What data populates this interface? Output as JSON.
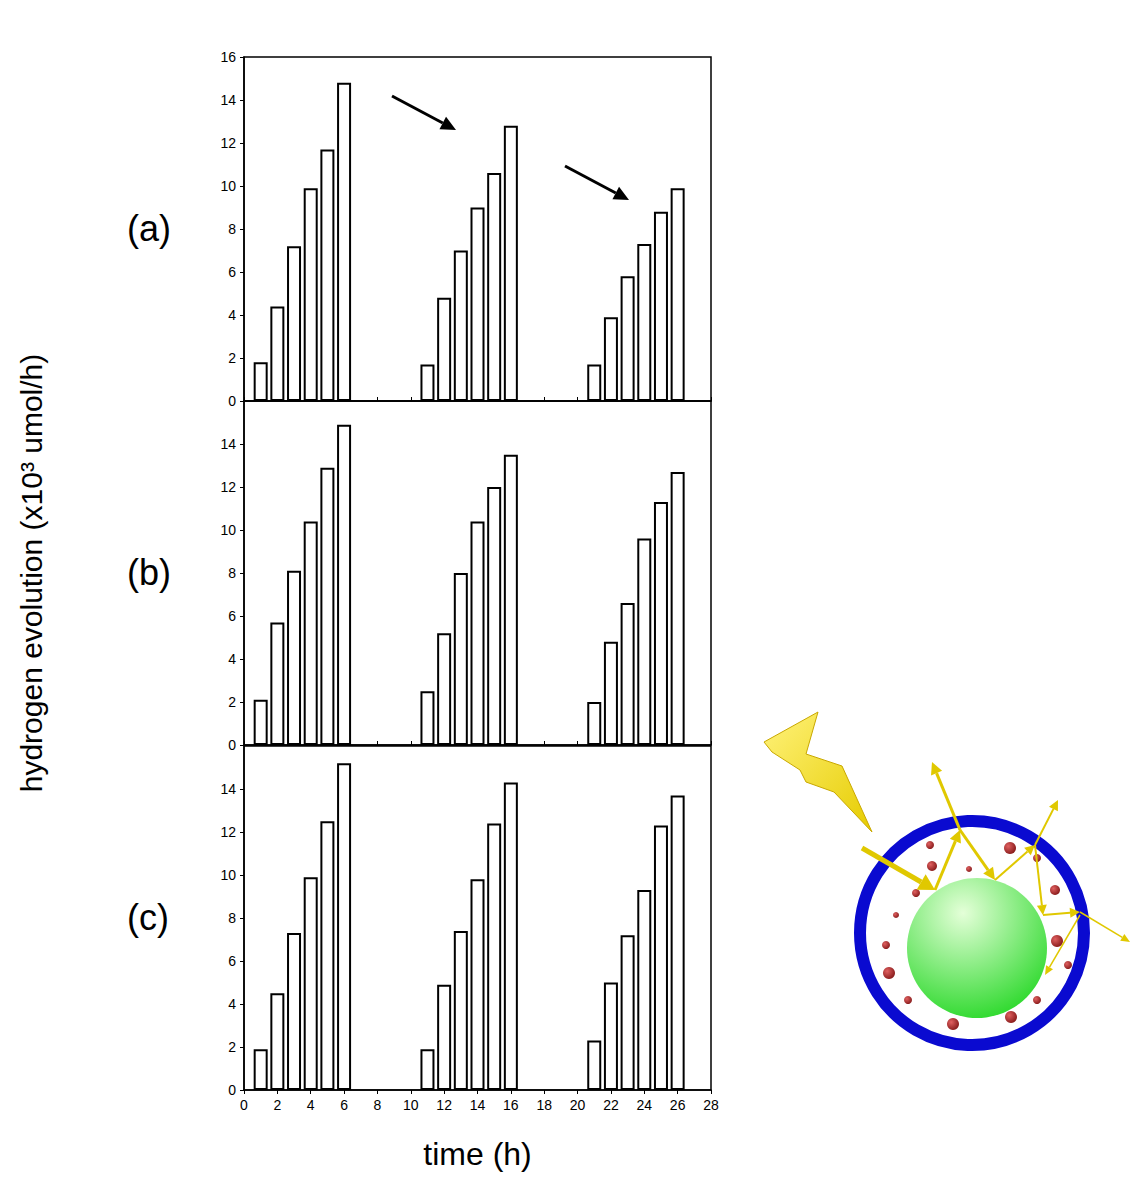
{
  "chart_data": [
    {
      "type": "bar",
      "title": "(a)",
      "x": [
        1,
        2,
        3,
        4,
        5,
        6,
        11,
        12,
        13,
        14,
        15,
        16,
        21,
        22,
        23,
        24,
        25,
        26
      ],
      "values": [
        1.8,
        4.4,
        7.2,
        9.9,
        11.7,
        14.8,
        1.7,
        4.8,
        7.0,
        9.0,
        10.6,
        12.8,
        1.7,
        3.9,
        5.8,
        7.3,
        8.8,
        9.9
      ],
      "color": "#ffffff",
      "xlim": [
        0,
        28
      ],
      "xticks": [
        0,
        2,
        4,
        6,
        8,
        10,
        12,
        14,
        16,
        18,
        20,
        22,
        24,
        26,
        28
      ],
      "ylim": [
        0,
        16
      ],
      "yticks": [
        0,
        2,
        4,
        6,
        8,
        10,
        12,
        14,
        16
      ],
      "tick_labels": "y",
      "grid": false
    },
    {
      "type": "bar",
      "title": "(b)",
      "ylabel": "hydrogen evolution (x10³ umol/h)",
      "x": [
        1,
        2,
        3,
        4,
        5,
        6,
        11,
        12,
        13,
        14,
        15,
        16,
        21,
        22,
        23,
        24,
        25,
        26
      ],
      "values": [
        2.1,
        5.7,
        8.1,
        10.4,
        12.9,
        14.9,
        2.5,
        5.2,
        8.0,
        10.4,
        12.0,
        13.5,
        2.0,
        4.8,
        6.6,
        9.6,
        11.3,
        12.7
      ],
      "color": "#ffffff",
      "xlim": [
        0,
        28
      ],
      "xticks": [
        0,
        2,
        4,
        6,
        8,
        10,
        12,
        14,
        16,
        18,
        20,
        22,
        24,
        26,
        28
      ],
      "ylim": [
        0,
        16
      ],
      "yticks": [
        0,
        2,
        4,
        6,
        8,
        10,
        12,
        14
      ],
      "tick_labels": "y",
      "grid": false
    },
    {
      "type": "bar",
      "title": "(c)",
      "xlabel": "time (h)",
      "x": [
        1,
        2,
        3,
        4,
        5,
        6,
        11,
        12,
        13,
        14,
        15,
        16,
        21,
        22,
        23,
        24,
        25,
        26
      ],
      "values": [
        1.9,
        4.5,
        7.3,
        9.9,
        12.5,
        15.2,
        1.9,
        4.9,
        7.4,
        9.8,
        12.4,
        14.3,
        2.3,
        5.0,
        7.2,
        9.3,
        12.3,
        13.7
      ],
      "color": "#ffffff",
      "xlim": [
        0,
        28
      ],
      "xticks": [
        0,
        2,
        4,
        6,
        8,
        10,
        12,
        14,
        16,
        18,
        20,
        22,
        24,
        26,
        28
      ],
      "ylim": [
        0,
        16
      ],
      "yticks": [
        0,
        2,
        4,
        6,
        8,
        10,
        12,
        14
      ],
      "grid": false
    }
  ]
}
